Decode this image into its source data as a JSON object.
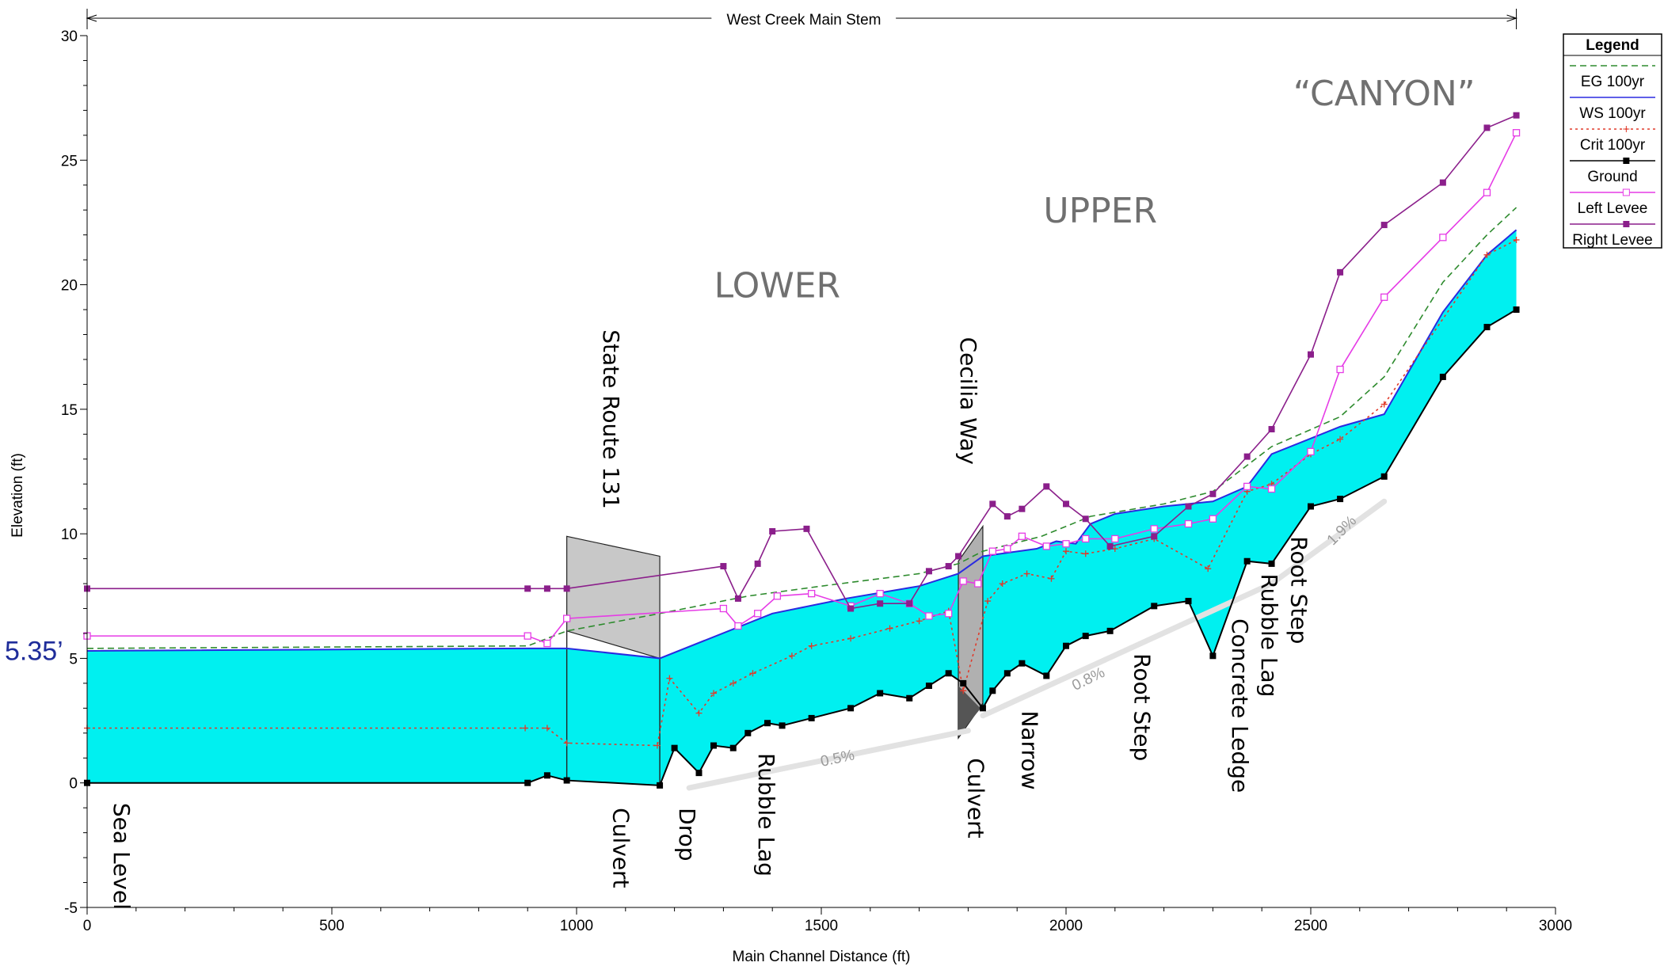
{
  "chart_data": {
    "type": "line",
    "title": "West Creek Main Stem",
    "xlabel": "Main Channel Distance (ft)",
    "ylabel": "Elevation (ft)",
    "xlim": [
      0,
      3000
    ],
    "ylim": [
      -5,
      30
    ],
    "xticks": [
      0,
      500,
      1000,
      1500,
      2000,
      2500,
      3000
    ],
    "yticks": [
      -5,
      0,
      5,
      10,
      15,
      20,
      25,
      30
    ],
    "grid": false,
    "legend_title": "Legend",
    "legend_position": "top-right",
    "series": [
      {
        "name": "EG  100yr",
        "color": "#2e8b2e",
        "style": "dashed",
        "marker": "none",
        "x": [
          0,
          900,
          980,
          1170,
          1350,
          1500,
          1700,
          1780,
          1830,
          1950,
          2050,
          2200,
          2300,
          2420,
          2560,
          2650,
          2770,
          2860,
          2920
        ],
        "y": [
          5.4,
          5.5,
          6.1,
          6.8,
          7.5,
          7.9,
          8.4,
          8.8,
          9.3,
          9.9,
          10.7,
          11.2,
          11.7,
          13.5,
          14.7,
          16.3,
          20.1,
          22.0,
          23.1
        ]
      },
      {
        "name": "WS  100yr",
        "color": "#2a2ae0",
        "style": "solid",
        "marker": "none",
        "x": [
          0,
          900,
          980,
          1170,
          1400,
          1550,
          1700,
          1780,
          1830,
          1940,
          1980,
          2020,
          2050,
          2100,
          2200,
          2300,
          2370,
          2420,
          2560,
          2650,
          2770,
          2860,
          2920
        ],
        "y": [
          5.3,
          5.4,
          5.4,
          5.0,
          6.8,
          7.4,
          7.9,
          8.4,
          9.1,
          9.4,
          9.7,
          9.6,
          10.4,
          10.8,
          11.1,
          11.3,
          11.9,
          13.2,
          14.3,
          14.8,
          18.9,
          21.2,
          22.2
        ]
      },
      {
        "name": "Crit  100yr",
        "color": "#e03a2a",
        "style": "dotted",
        "marker": "plus",
        "x": [
          0,
          895,
          940,
          980,
          1165,
          1190,
          1250,
          1280,
          1320,
          1360,
          1440,
          1480,
          1560,
          1640,
          1700,
          1760,
          1790,
          1840,
          1870,
          1920,
          1970,
          2000,
          2040,
          2100,
          2180,
          2290,
          2370,
          2420,
          2500,
          2560,
          2650,
          2860,
          2920
        ],
        "y": [
          2.2,
          2.2,
          2.2,
          1.6,
          1.5,
          4.2,
          2.8,
          3.6,
          4.0,
          4.4,
          5.1,
          5.5,
          5.8,
          6.2,
          6.5,
          6.9,
          3.7,
          7.3,
          8.0,
          8.4,
          8.2,
          9.3,
          9.2,
          9.4,
          9.8,
          8.6,
          11.7,
          12.0,
          13.2,
          13.8,
          15.2,
          21.2,
          21.8
        ]
      },
      {
        "name": "Ground",
        "color": "#000000",
        "style": "solid",
        "marker": "filled-square",
        "x": [
          0,
          900,
          940,
          980,
          1170,
          1200,
          1250,
          1280,
          1320,
          1350,
          1390,
          1420,
          1480,
          1560,
          1620,
          1680,
          1720,
          1760,
          1790,
          1830,
          1850,
          1880,
          1910,
          1960,
          2000,
          2040,
          2090,
          2180,
          2250,
          2300,
          2370,
          2420,
          2500,
          2560,
          2650,
          2770,
          2860,
          2920
        ],
        "y": [
          0,
          0,
          0.3,
          0.1,
          -0.1,
          1.4,
          0.4,
          1.5,
          1.4,
          2.0,
          2.4,
          2.3,
          2.6,
          3.0,
          3.6,
          3.4,
          3.9,
          4.4,
          4.0,
          3.0,
          3.7,
          4.4,
          4.8,
          4.3,
          5.5,
          5.9,
          6.1,
          7.1,
          7.3,
          5.1,
          8.9,
          8.8,
          11.1,
          11.4,
          12.3,
          16.3,
          18.3,
          19.0
        ]
      },
      {
        "name": "Left Levee",
        "color": "#e63ce6",
        "style": "solid",
        "marker": "open-square",
        "x": [
          0,
          900,
          940,
          980,
          1300,
          1330,
          1370,
          1410,
          1480,
          1560,
          1620,
          1680,
          1720,
          1760,
          1790,
          1820,
          1850,
          1880,
          1910,
          1960,
          2000,
          2040,
          2100,
          2180,
          2250,
          2300,
          2370,
          2420,
          2500,
          2560,
          2650,
          2770,
          2860,
          2920
        ],
        "y": [
          5.9,
          5.9,
          5.6,
          6.6,
          7.0,
          6.3,
          6.8,
          7.5,
          7.6,
          7.1,
          7.6,
          7.2,
          6.7,
          6.8,
          8.1,
          8.0,
          9.3,
          9.4,
          9.9,
          9.5,
          9.6,
          9.8,
          9.8,
          10.2,
          10.4,
          10.6,
          11.9,
          11.8,
          13.3,
          16.6,
          19.5,
          21.9,
          23.7,
          26.1
        ]
      },
      {
        "name": "Right Levee",
        "color": "#8b1f8b",
        "style": "solid",
        "marker": "filled-square",
        "x": [
          0,
          900,
          940,
          980,
          1300,
          1330,
          1370,
          1400,
          1470,
          1560,
          1620,
          1680,
          1720,
          1760,
          1780,
          1850,
          1880,
          1910,
          1960,
          2000,
          2040,
          2090,
          2180,
          2250,
          2300,
          2370,
          2420,
          2500,
          2560,
          2650,
          2770,
          2860,
          2920
        ],
        "y": [
          7.8,
          7.8,
          7.8,
          7.8,
          8.7,
          7.4,
          8.8,
          10.1,
          10.2,
          7.0,
          7.2,
          7.2,
          8.5,
          8.7,
          9.1,
          11.2,
          10.7,
          11.0,
          11.9,
          11.2,
          10.6,
          9.5,
          9.9,
          11.1,
          11.6,
          13.1,
          14.2,
          17.2,
          20.5,
          22.4,
          24.1,
          26.3,
          26.8
        ]
      }
    ],
    "structures": [
      {
        "label": "State Route 131",
        "x": [
          980,
          1170
        ],
        "top": [
          9.9,
          9.1
        ],
        "bottom": [
          6.1,
          5.0
        ]
      },
      {
        "label": "Cecilia Way",
        "x": [
          1780,
          1830
        ],
        "top": [
          8.9,
          10.3
        ],
        "bottom": [
          1.8,
          3.2
        ]
      }
    ],
    "region_labels": [
      {
        "text": "LOWER",
        "x": 1410,
        "y": 19.5
      },
      {
        "text": "UPPER",
        "x": 2070,
        "y": 22.5
      },
      {
        "text": "“CANYON”",
        "x": 2650,
        "y": 27.2
      }
    ],
    "annotations": [
      {
        "text": "Sea Level",
        "x": 55,
        "y": -0.8
      },
      {
        "text": "Culvert",
        "x": 1075,
        "y": -1.0
      },
      {
        "text": "Drop",
        "x": 1210,
        "y": -1.0
      },
      {
        "text": "Rubble Lag",
        "x": 1372,
        "y": 1.2
      },
      {
        "text": "Culvert",
        "x": 1800,
        "y": 1.0
      },
      {
        "text": "Narrow",
        "x": 1910,
        "y": 2.9
      },
      {
        "text": "Root Step",
        "x": 2140,
        "y": 5.2
      },
      {
        "text": "Concrete Ledge",
        "x": 2340,
        "y": 6.6
      },
      {
        "text": "Rubble Lag",
        "x": 2400,
        "y": 8.4
      },
      {
        "text": "Root Step",
        "x": 2460,
        "y": 9.9
      }
    ],
    "slope_labels": [
      {
        "text": "0.5%",
        "x": 1535,
        "y": 0.8
      },
      {
        "text": "0.8%",
        "x": 2050,
        "y": 4.0
      },
      {
        "text": "1.9%",
        "x": 2570,
        "y": 10.0
      }
    ],
    "callout": {
      "text": "5.35’",
      "y": 5.35
    }
  }
}
